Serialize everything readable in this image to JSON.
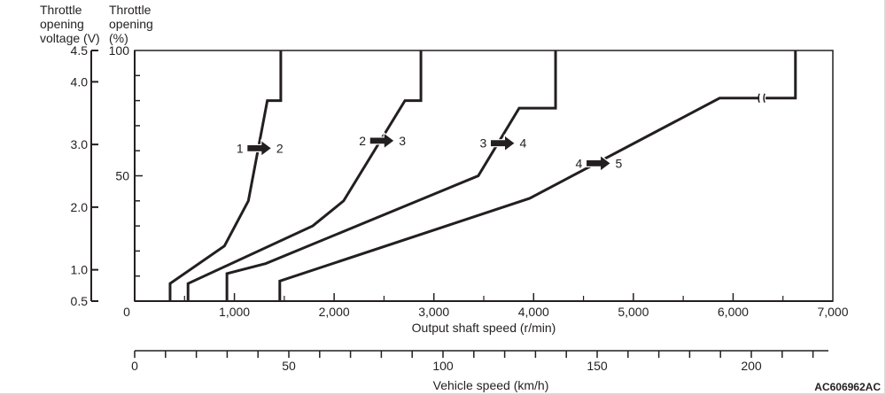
{
  "chart_data": {
    "type": "line",
    "title": "",
    "xlabel": "Output shaft speed (r/min)",
    "x2label": "Vehicle speed (km/h)",
    "ylabel_left": "Throttle opening voltage (V)",
    "ylabel_right": "Throttle opening (%)",
    "ylabel_left_lines": [
      "Throttle",
      "opening",
      "voltage (V)"
    ],
    "ylabel_right_lines": [
      "Throttle",
      "opening",
      "(%)"
    ],
    "xlim": [
      0,
      7000
    ],
    "ylim": [
      0,
      100
    ],
    "x2lim": [
      0,
      225
    ],
    "voltage_lim": [
      0.5,
      4.5
    ],
    "x_ticks": [
      0,
      1000,
      2000,
      3000,
      4000,
      5000,
      6000,
      7000
    ],
    "x_tick_labels": [
      "0",
      "1,000",
      "2,000",
      "3,000",
      "4,000",
      "5,000",
      "6,000",
      "7,000"
    ],
    "x_minor_ticks": [
      500,
      1500,
      2500,
      3500,
      4500,
      5500,
      6500
    ],
    "x2_ticks": [
      0,
      10,
      20,
      30,
      40,
      50,
      60,
      70,
      80,
      90,
      100,
      110,
      120,
      130,
      140,
      150,
      160,
      170,
      180,
      190,
      200,
      210,
      220
    ],
    "x2_tick_labels": [
      {
        "value": 0,
        "label": "0"
      },
      {
        "value": 50,
        "label": "50"
      },
      {
        "value": 100,
        "label": "100"
      },
      {
        "value": 150,
        "label": "150"
      },
      {
        "value": 200,
        "label": "200"
      }
    ],
    "y_ticks": [
      0,
      10,
      20,
      30,
      40,
      50,
      60,
      70,
      80,
      90,
      100
    ],
    "y_tick_labels": [
      {
        "value": 50,
        "label": "50"
      },
      {
        "value": 100,
        "label": "100"
      }
    ],
    "voltage_ticks": [
      {
        "value": 4.5,
        "label": "4.5"
      },
      {
        "value": 4.0,
        "label": "4.0"
      },
      {
        "value": 3.0,
        "label": "3.0"
      },
      {
        "value": 2.0,
        "label": "2.0"
      },
      {
        "value": 1.0,
        "label": "1.0"
      },
      {
        "value": 0.5,
        "label": "0.5"
      }
    ],
    "grid": false,
    "series": [
      {
        "name": "1 → 2",
        "from": "1",
        "to": "2",
        "x": [
          355,
          355,
          900,
          1140,
          1330,
          1465,
          1465
        ],
        "y": [
          0,
          7,
          22,
          40,
          80,
          80,
          100
        ],
        "arrow_at": {
          "x": 1250,
          "y": 61
        }
      },
      {
        "name": "2 → 3",
        "from": "2",
        "to": "3",
        "x": [
          535,
          535,
          1785,
          2095,
          2710,
          2870,
          2870
        ],
        "y": [
          0,
          7,
          30,
          40,
          80,
          80,
          100
        ],
        "arrow_at": {
          "x": 2480,
          "y": 64
        }
      },
      {
        "name": "3 → 4",
        "from": "3",
        "to": "4",
        "x": [
          925,
          925,
          1315,
          3445,
          3855,
          4220,
          4220
        ],
        "y": [
          0,
          11,
          15,
          50,
          77,
          77,
          100
        ],
        "arrow_at": {
          "x": 3690,
          "y": 63
        }
      },
      {
        "name": "4 → 5",
        "from": "4",
        "to": "5",
        "x": [
          1455,
          1455,
          3960,
          5865,
          6625,
          6625
        ],
        "y": [
          0,
          8,
          41,
          81,
          81,
          100
        ],
        "arrow_at": {
          "x": 4650,
          "y": 55
        },
        "axis_break_at": {
          "x": 6290,
          "y": 81
        }
      }
    ]
  },
  "figure_code": "AC606962AC"
}
